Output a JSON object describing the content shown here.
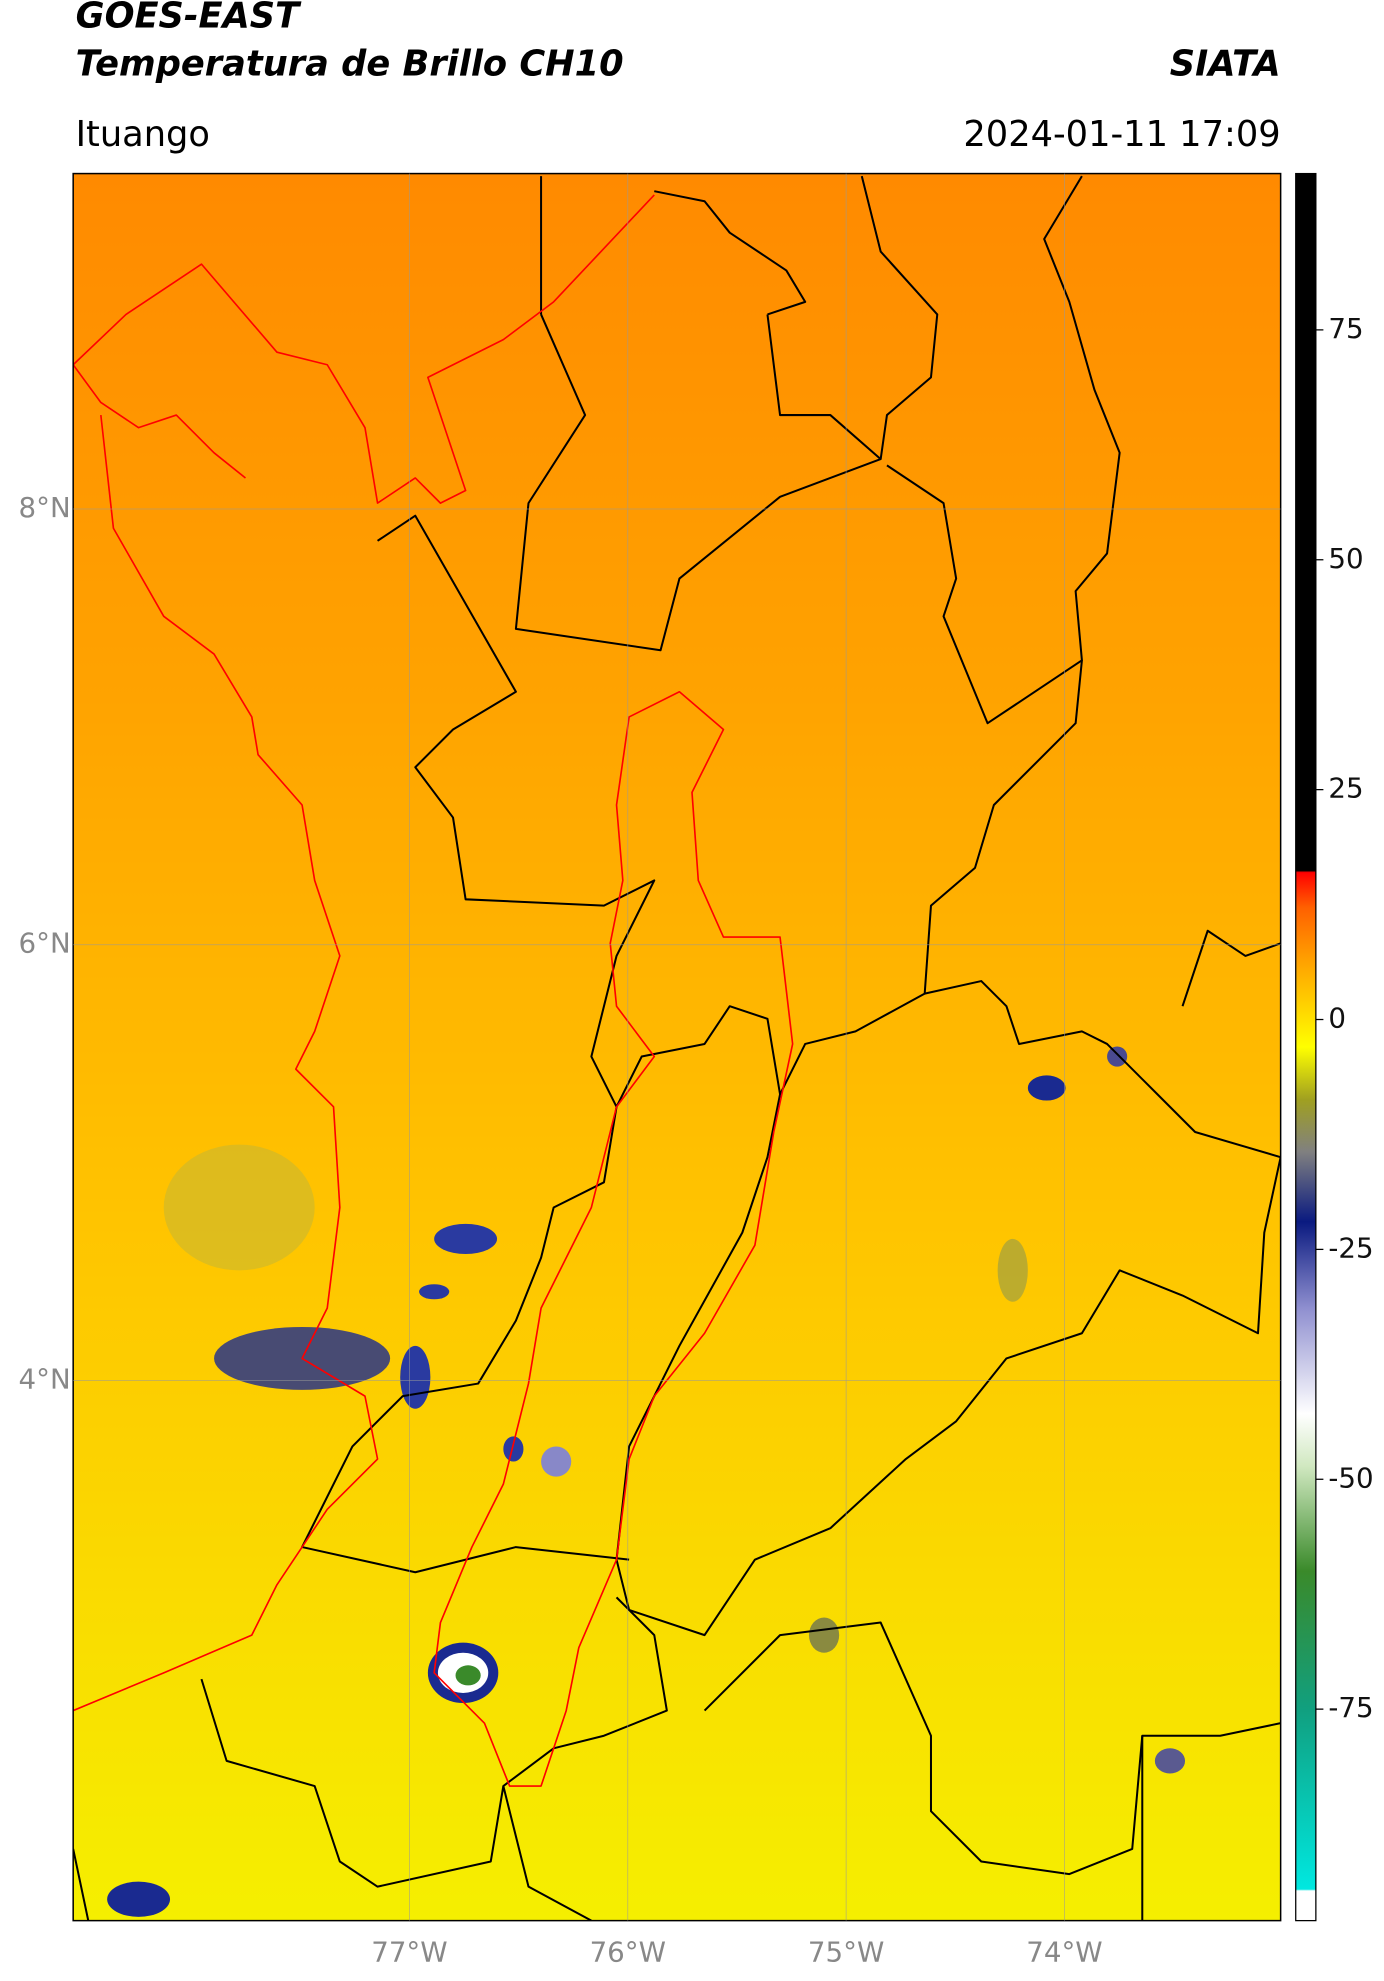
{
  "header": {
    "title": "GOES-EAST",
    "subtitle": "Temperatura de Brillo CH10",
    "brand": "SIATA",
    "location": "Ituango",
    "datetime": "2024-01-11 17:09"
  },
  "map": {
    "latlim": [
      1.52,
      9.54
    ],
    "lonlim": [
      -78.54,
      -73.01
    ],
    "lat_ticks": [
      {
        "value": 8,
        "label": "8°N"
      },
      {
        "value": 6,
        "label": "6°N"
      },
      {
        "value": 4,
        "label": "4°N"
      }
    ],
    "lon_ticks": [
      {
        "value": -77,
        "label": "77°W"
      },
      {
        "value": -76,
        "label": "76°W"
      },
      {
        "value": -75,
        "label": "75°W"
      },
      {
        "value": -74,
        "label": "74°W"
      }
    ],
    "grid": true
  },
  "colorbar": {
    "clim": [
      -98,
      92
    ],
    "ticks": [
      75,
      50,
      25,
      0,
      -25,
      -50,
      -75
    ]
  }
}
